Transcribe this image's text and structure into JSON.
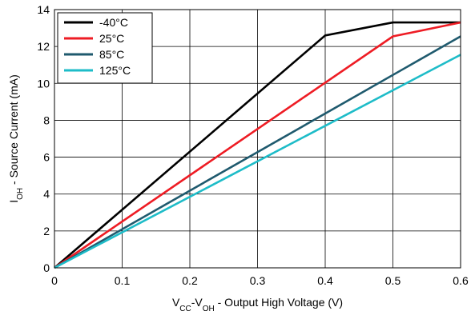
{
  "chart_data": {
    "type": "line",
    "title": "",
    "xlabel": {
      "parts": [
        {
          "text": "V",
          "sub": false
        },
        {
          "text": "CC",
          "sub": true
        },
        {
          "text": "-V",
          "sub": false
        },
        {
          "text": "OH",
          "sub": true
        },
        {
          "text": " - Output High Voltage (V)",
          "sub": false
        }
      ]
    },
    "ylabel": {
      "parts": [
        {
          "text": "I",
          "sub": false
        },
        {
          "text": "OH",
          "sub": true
        },
        {
          "text": " - Source Current (mA)",
          "sub": false
        }
      ]
    },
    "xlim": [
      0,
      0.6
    ],
    "ylim": [
      0,
      14
    ],
    "xticks": [
      0,
      0.1,
      0.2,
      0.3,
      0.4,
      0.5,
      0.6
    ],
    "xtick_labels": [
      "0",
      "0.1",
      "0.2",
      "0.3",
      "0.4",
      "0.5",
      "0.6"
    ],
    "yticks": [
      0,
      2,
      4,
      6,
      8,
      10,
      12,
      14
    ],
    "ytick_labels": [
      "0",
      "2",
      "4",
      "6",
      "8",
      "10",
      "12",
      "14"
    ],
    "grid": true,
    "legend_position": "top-left",
    "series": [
      {
        "name": "-40°C",
        "color": "#000000",
        "x": [
          0,
          0.4,
          0.5,
          0.6
        ],
        "y": [
          0,
          12.6,
          13.3,
          13.3
        ]
      },
      {
        "name": "25°C",
        "color": "#ee1c24",
        "x": [
          0,
          0.5,
          0.6
        ],
        "y": [
          0,
          12.55,
          13.3
        ]
      },
      {
        "name": "85°C",
        "color": "#1f5a6e",
        "x": [
          0,
          0.6
        ],
        "y": [
          0,
          12.55
        ]
      },
      {
        "name": "125°C",
        "color": "#1ebcc8",
        "x": [
          0,
          0.6
        ],
        "y": [
          0,
          11.55
        ]
      }
    ]
  }
}
